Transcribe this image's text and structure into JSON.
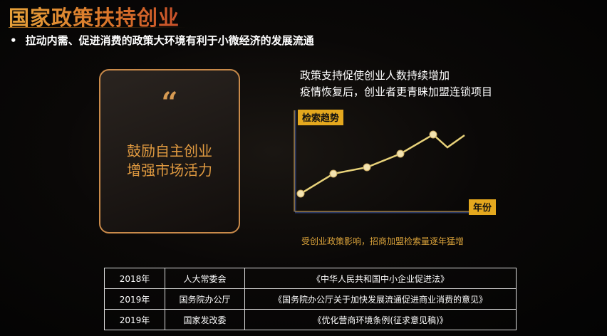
{
  "title": "国家政策扶持创业",
  "bullet": {
    "marker": "•",
    "text": "拉动内需、促进消费的政策大环境有利于小微经济的发展流通"
  },
  "card": {
    "quote_icon": "quote-mark-icon",
    "quote": "“",
    "lines": [
      "鼓励自主创业",
      "增强市场活力"
    ]
  },
  "description": [
    "政策支持促使创业人数持续增加",
    "疫情恢复后，创业者更青睐加盟连锁项目"
  ],
  "trend_chart": {
    "y_label": "检索趋势",
    "x_label": "年份",
    "line_color": "#e8d27a",
    "axis_color": "#e4a81e"
  },
  "caption": "受创业政策影响，招商加盟检索量逐年猛增",
  "policy_table": [
    {
      "year": "2018年",
      "agency": "人大常委会",
      "document": "《中华人民共和国中小企业促进法》"
    },
    {
      "year": "2019年",
      "agency": "国务院办公厅",
      "document": "《国务院办公厅关于加快发展流通促进商业消费的意见》"
    },
    {
      "year": "2019年",
      "agency": "国家发改委",
      "document": "《优化营商环境条例(征求意见稿)》"
    }
  ]
}
